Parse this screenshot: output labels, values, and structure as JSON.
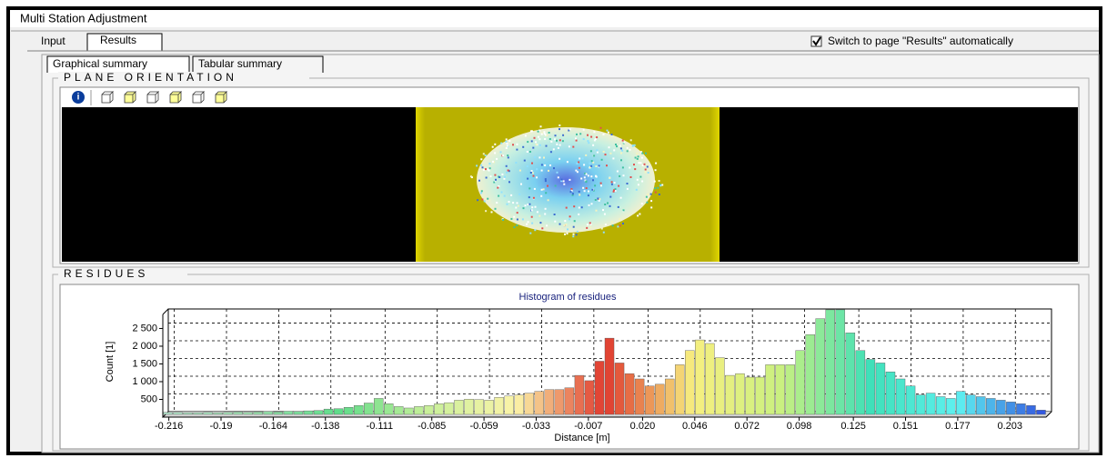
{
  "window": {
    "title": "Multi Station Adjustment"
  },
  "tabs": [
    "Input",
    "Results"
  ],
  "auto_switch": {
    "label": "Switch to page \"Results\" automatically",
    "checked": true
  },
  "subtabs": [
    "Graphical summary",
    "Tabular summary"
  ],
  "plane_orientation": {
    "title": "PLANE ORIENTATION"
  },
  "residues": {
    "title": "RESIDUES"
  },
  "chart_data": {
    "type": "histogram",
    "title": "Histogram of residues",
    "x_label": "Distance [m]",
    "y_label": "Count [1]",
    "bins": [
      -0.219,
      -0.214,
      -0.209,
      -0.204,
      -0.199,
      -0.194,
      -0.189,
      -0.184,
      -0.179,
      -0.174,
      -0.169,
      -0.164,
      -0.159,
      -0.154,
      -0.149,
      -0.144,
      -0.139,
      -0.134,
      -0.129,
      -0.124,
      -0.119,
      -0.114,
      -0.109,
      -0.104,
      -0.099,
      -0.094,
      -0.089,
      -0.084,
      -0.079,
      -0.074,
      -0.069,
      -0.064,
      -0.059,
      -0.054,
      -0.049,
      -0.044,
      -0.039,
      -0.034,
      -0.029,
      -0.024,
      -0.019,
      -0.014,
      -0.009,
      -0.004,
      0.001,
      0.006,
      0.011,
      0.016,
      0.021,
      0.026,
      0.031,
      0.036,
      0.041,
      0.046,
      0.051,
      0.056,
      0.061,
      0.066,
      0.071,
      0.076,
      0.081,
      0.086,
      0.091,
      0.096,
      0.101,
      0.106,
      0.111,
      0.116,
      0.121,
      0.126,
      0.131,
      0.136,
      0.141,
      0.146,
      0.151,
      0.156,
      0.161,
      0.166,
      0.171,
      0.176,
      0.181,
      0.186,
      0.191,
      0.196,
      0.201,
      0.206,
      0.211,
      0.216,
      0.221
    ],
    "values": [
      60,
      60,
      50,
      50,
      60,
      50,
      60,
      70,
      60,
      70,
      80,
      70,
      90,
      80,
      100,
      110,
      150,
      160,
      200,
      250,
      320,
      450,
      300,
      220,
      180,
      220,
      250,
      300,
      330,
      400,
      430,
      420,
      400,
      480,
      520,
      550,
      600,
      650,
      700,
      700,
      750,
      1100,
      950,
      1500,
      2150,
      1450,
      1150,
      1000,
      800,
      850,
      1000,
      1400,
      1800,
      2100,
      2000,
      1600,
      1100,
      1150,
      1050,
      1050,
      1400,
      1400,
      1400,
      1800,
      2250,
      2700,
      2950,
      2950,
      2300,
      1800,
      1550,
      1450,
      1200,
      1000,
      800,
      550,
      600,
      500,
      450,
      650,
      550,
      500,
      450,
      400,
      350,
      300,
      250,
      120
    ],
    "xlim": [
      -0.219,
      0.221
    ],
    "ylim": [
      0,
      3050
    ],
    "xticks": [
      -0.216,
      -0.19,
      -0.164,
      -0.138,
      -0.111,
      -0.085,
      -0.059,
      -0.033,
      -0.007,
      {
        "value": 0.02,
        "label": "0.020"
      },
      0.046,
      0.072,
      0.098,
      0.125,
      0.151,
      0.177,
      0.203
    ],
    "yticks": [
      500,
      {
        "value": 1000,
        "label": "1 000"
      },
      {
        "value": 1500,
        "label": "1 500"
      },
      {
        "value": 2000,
        "label": "2 000"
      },
      {
        "value": 2500,
        "label": "2 500"
      }
    ],
    "grid": true,
    "colormap": [
      "#b0e0c8",
      "#9fe0b0",
      "#5fdc8a",
      "#c8ef9a",
      "#fbf3a8",
      "#e03a2e",
      "#f7ef80",
      "#c9f080",
      "#3fe0b8",
      "#5ef0f0",
      "#3050e0"
    ]
  }
}
